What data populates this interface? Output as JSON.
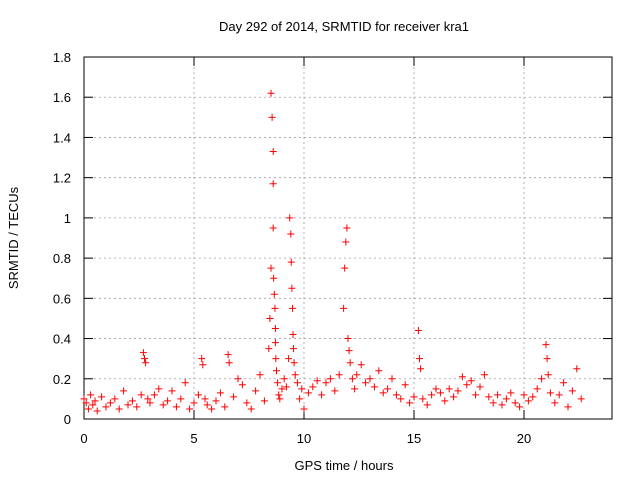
{
  "chart_data": {
    "type": "scatter",
    "title": "Day 292 of 2014, SRMTID for receiver kra1",
    "xlabel": "GPS time / hours",
    "ylabel": "SRMTID / TECUs",
    "xlim": [
      0,
      24
    ],
    "ylim": [
      0,
      1.8
    ],
    "xticks": [
      0,
      5,
      10,
      15,
      20
    ],
    "xtick_labels": [
      "0",
      "5",
      "10",
      "15",
      "20"
    ],
    "yticks": [
      0,
      0.2,
      0.4,
      0.6,
      0.8,
      1,
      1.2,
      1.4,
      1.6,
      1.8
    ],
    "ytick_labels": [
      "0",
      "0.2",
      "0.4",
      "0.6",
      "0.8",
      "1",
      "1.2",
      "1.4",
      "1.6",
      "1.8"
    ],
    "grid": true,
    "marker": "+",
    "color": "#ff0000",
    "series": [
      {
        "name": "SRMTID",
        "x": [
          0.0,
          0.1,
          0.2,
          0.3,
          0.4,
          0.5,
          0.6,
          0.8,
          1.0,
          1.2,
          1.4,
          1.6,
          1.8,
          2.0,
          2.2,
          2.4,
          2.6,
          2.7,
          2.75,
          2.8,
          2.9,
          3.0,
          3.2,
          3.4,
          3.6,
          3.8,
          4.0,
          4.2,
          4.4,
          4.6,
          4.8,
          5.0,
          5.2,
          5.35,
          5.4,
          5.5,
          5.6,
          5.8,
          6.0,
          6.2,
          6.4,
          6.55,
          6.6,
          6.8,
          7.0,
          7.2,
          7.4,
          7.6,
          7.8,
          8.0,
          8.2,
          8.4,
          8.45,
          8.5,
          8.5,
          8.55,
          8.6,
          8.6,
          8.6,
          8.62,
          8.65,
          8.68,
          8.7,
          8.7,
          8.72,
          8.75,
          8.8,
          8.85,
          8.9,
          9.0,
          9.1,
          9.2,
          9.3,
          9.35,
          9.4,
          9.42,
          9.45,
          9.48,
          9.5,
          9.52,
          9.55,
          9.6,
          9.7,
          9.8,
          9.9,
          10.0,
          10.2,
          10.4,
          10.6,
          10.8,
          11.0,
          11.2,
          11.4,
          11.6,
          11.8,
          11.85,
          11.9,
          11.95,
          12.0,
          12.05,
          12.1,
          12.2,
          12.3,
          12.4,
          12.6,
          12.8,
          13.0,
          13.2,
          13.4,
          13.6,
          13.8,
          14.0,
          14.2,
          14.4,
          14.6,
          14.8,
          15.0,
          15.2,
          15.25,
          15.3,
          15.4,
          15.6,
          15.8,
          16.0,
          16.2,
          16.4,
          16.6,
          16.8,
          17.0,
          17.2,
          17.4,
          17.6,
          17.8,
          18.0,
          18.2,
          18.4,
          18.6,
          18.8,
          19.0,
          19.2,
          19.4,
          19.6,
          19.8,
          20.0,
          20.2,
          20.4,
          20.6,
          20.8,
          21.0,
          21.05,
          21.1,
          21.2,
          21.4,
          21.6,
          21.8,
          22.0,
          22.2,
          22.4,
          22.6
        ],
        "y": [
          0.1,
          0.08,
          0.05,
          0.12,
          0.07,
          0.09,
          0.04,
          0.11,
          0.06,
          0.08,
          0.1,
          0.05,
          0.14,
          0.07,
          0.09,
          0.06,
          0.12,
          0.33,
          0.3,
          0.28,
          0.1,
          0.08,
          0.12,
          0.15,
          0.07,
          0.09,
          0.14,
          0.06,
          0.1,
          0.18,
          0.05,
          0.08,
          0.12,
          0.3,
          0.27,
          0.1,
          0.07,
          0.05,
          0.09,
          0.13,
          0.06,
          0.32,
          0.28,
          0.11,
          0.2,
          0.17,
          0.08,
          0.05,
          0.14,
          0.22,
          0.09,
          0.35,
          0.5,
          0.75,
          1.62,
          1.5,
          1.33,
          1.17,
          0.95,
          0.7,
          0.62,
          0.55,
          0.45,
          0.38,
          0.3,
          0.24,
          0.18,
          0.12,
          0.1,
          0.15,
          0.2,
          0.16,
          0.3,
          1.0,
          0.92,
          0.78,
          0.65,
          0.55,
          0.42,
          0.35,
          0.28,
          0.22,
          0.18,
          0.1,
          0.15,
          0.05,
          0.13,
          0.16,
          0.19,
          0.12,
          0.18,
          0.2,
          0.14,
          0.22,
          0.55,
          0.75,
          0.88,
          0.95,
          0.4,
          0.34,
          0.28,
          0.2,
          0.15,
          0.22,
          0.27,
          0.18,
          0.2,
          0.16,
          0.24,
          0.13,
          0.15,
          0.2,
          0.12,
          0.1,
          0.17,
          0.08,
          0.11,
          0.44,
          0.3,
          0.25,
          0.1,
          0.07,
          0.12,
          0.15,
          0.13,
          0.09,
          0.15,
          0.11,
          0.14,
          0.21,
          0.17,
          0.19,
          0.12,
          0.16,
          0.22,
          0.11,
          0.08,
          0.12,
          0.07,
          0.1,
          0.13,
          0.08,
          0.06,
          0.12,
          0.09,
          0.11,
          0.15,
          0.2,
          0.37,
          0.3,
          0.22,
          0.13,
          0.08,
          0.12,
          0.18,
          0.06,
          0.14,
          0.25,
          0.1
        ]
      }
    ]
  }
}
